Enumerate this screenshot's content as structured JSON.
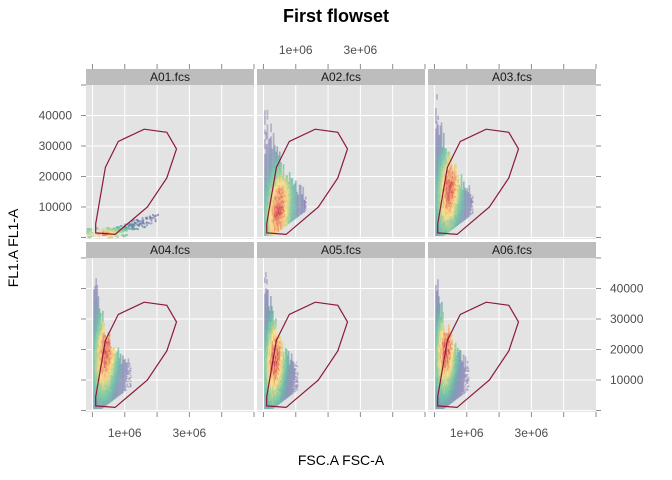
{
  "chart_data": {
    "type": "scatter",
    "title": "First flowset",
    "xlabel": "FSC.A FSC-A",
    "ylabel": "FL1.A FL1-A",
    "x_tick_labels": [
      "1e+06",
      "3e+06"
    ],
    "x_ticks": [
      1000000,
      3000000
    ],
    "xlim": [
      -200000,
      5000000
    ],
    "y_tick_labels": [
      "10000",
      "20000",
      "30000",
      "40000"
    ],
    "y_ticks": [
      10000,
      20000,
      30000,
      40000
    ],
    "ylim": [
      -500,
      50000
    ],
    "grid": true,
    "layout": "3 columns x 2 rows",
    "colors": {
      "panel_bg": "#e3e3e3",
      "strip_bg": "#bdbdbd",
      "grid": "#ffffff",
      "gate": "#8b1a3a",
      "density_low": "#5e4fa2",
      "density_mid": "#66c2a5",
      "density_high": "#fee08b",
      "density_peak": "#d53e4f"
    },
    "gate_polygon": [
      [
        100000,
        1500
      ],
      [
        700000,
        1000
      ],
      [
        1700000,
        10000
      ],
      [
        2300000,
        19500
      ],
      [
        2600000,
        29000
      ],
      [
        2300000,
        34500
      ],
      [
        1600000,
        35500
      ],
      [
        800000,
        31500
      ],
      [
        400000,
        23000
      ],
      [
        100000,
        4500
      ]
    ],
    "panels": [
      {
        "name": "A01.fcs",
        "population": {
          "shape": "diagonal-blob",
          "x_center": 400000,
          "x_spread": 400000,
          "y_center": 2000,
          "y_spread": 2000,
          "slope": 0.003,
          "max_y": 8000,
          "peak_x": 300000,
          "peak_y": 1500
        }
      },
      {
        "name": "A02.fcs",
        "population": {
          "shape": "rising-column",
          "x_center": 800000,
          "x_spread": 500000,
          "y_min": 500,
          "y_max": 48000,
          "peak_x": 450000,
          "peak_y": 9000
        }
      },
      {
        "name": "A03.fcs",
        "population": {
          "shape": "rising-column",
          "x_center": 800000,
          "x_spread": 450000,
          "y_min": 500,
          "y_max": 50000,
          "peak_x": 450000,
          "peak_y": 16000
        }
      },
      {
        "name": "A04.fcs",
        "population": {
          "shape": "rising-column",
          "x_center": 700000,
          "x_spread": 450000,
          "y_min": 500,
          "y_max": 50000,
          "peak_x": 400000,
          "peak_y": 19000
        }
      },
      {
        "name": "A05.fcs",
        "population": {
          "shape": "rising-column",
          "x_center": 700000,
          "x_spread": 400000,
          "y_min": 500,
          "y_max": 50000,
          "peak_x": 350000,
          "peak_y": 17000
        }
      },
      {
        "name": "A06.fcs",
        "population": {
          "shape": "rising-column",
          "x_center": 700000,
          "x_spread": 400000,
          "y_min": 500,
          "y_max": 50000,
          "peak_x": 350000,
          "peak_y": 20000
        }
      }
    ]
  }
}
